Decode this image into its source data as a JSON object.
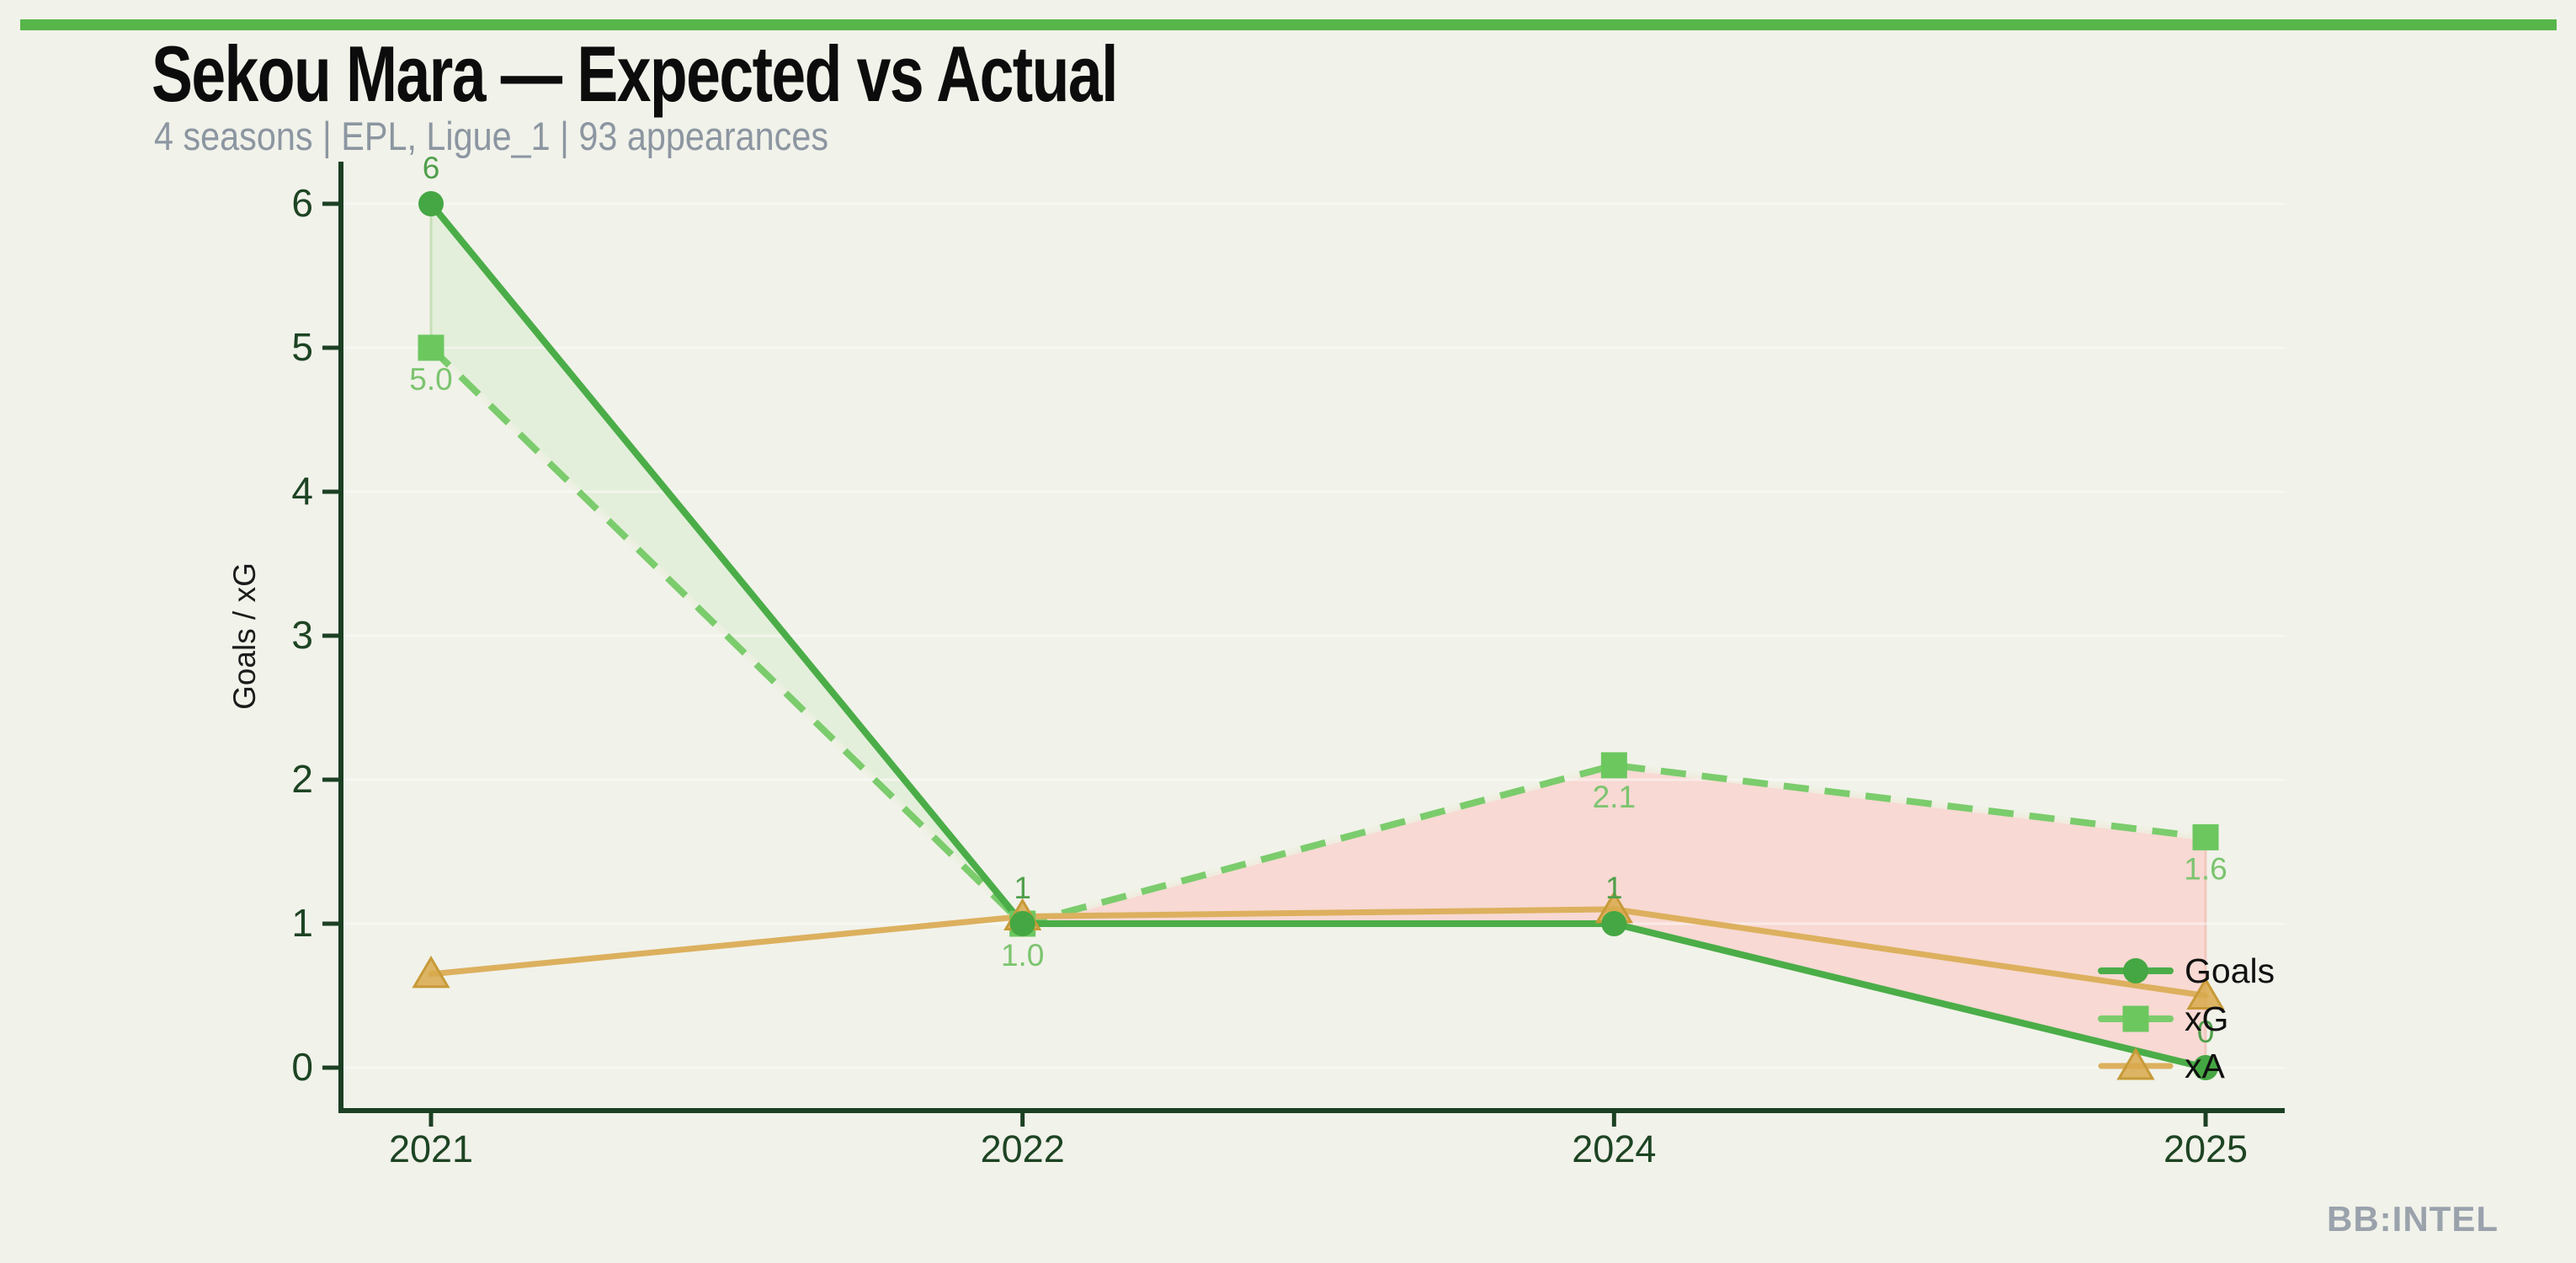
{
  "header": {
    "title": "Sekou Mara — Expected vs Actual",
    "subtitle": "4 seasons | EPL, Ligue_1 | 93 appearances"
  },
  "watermark": "BB:INTEL",
  "colors": {
    "background": "#f1f2ea",
    "top_bar": "#57b64a",
    "title": "#0c0c0c",
    "subtitle": "#8c96a1",
    "axis": "#1c4023",
    "tick_label": "#1d4423",
    "y_axis_label": "#1b1b1b",
    "fill_goals_above_xg": "#e3efda",
    "fill_xg_above_goals": "#f8d9d3",
    "legend_text": "#111111",
    "watermark": "#9aa2ac"
  },
  "chart_data": {
    "type": "line",
    "title": "Sekou Mara — Expected vs Actual",
    "categories": [
      "2021",
      "2022",
      "2024",
      "2025"
    ],
    "series": [
      {
        "name": "Goals",
        "values": [
          6,
          1,
          1,
          0
        ],
        "labels": [
          "6",
          "1",
          "1",
          "0"
        ],
        "label_side": "above",
        "label_color": "#4f9f4a",
        "color": "#4bad48",
        "marker_color": "#45a743",
        "marker": "circle",
        "line_style": "solid",
        "line_width": 8
      },
      {
        "name": "xG",
        "values": [
          5.0,
          1.0,
          2.1,
          1.6
        ],
        "labels": [
          "5.0",
          "1.0",
          "2.1",
          "1.6"
        ],
        "label_side": "below",
        "label_color": "#7cc46f",
        "color": "#7bcc6c",
        "marker_color": "#6cc75f",
        "marker": "square",
        "line_style": "dashed",
        "line_width": 8
      },
      {
        "name": "xA",
        "values": [
          0.65,
          1.05,
          1.1,
          0.5
        ],
        "labels": [],
        "label_side": null,
        "label_color": null,
        "color": "#dcb05e",
        "marker_color": "#d9a94c",
        "marker": "triangle",
        "line_style": "solid",
        "line_width": 7
      }
    ],
    "xlabel": "",
    "ylabel": "Goals / xG",
    "ylim": [
      0,
      6
    ],
    "yticks": [
      0,
      1,
      2,
      3,
      4,
      5,
      6
    ],
    "grid": "horizontal-faint",
    "legend_position": "right-inside",
    "fills": {
      "between": [
        "Goals",
        "xG"
      ],
      "above_color": "#e3efda",
      "below_color": "#f8d9d3"
    }
  }
}
